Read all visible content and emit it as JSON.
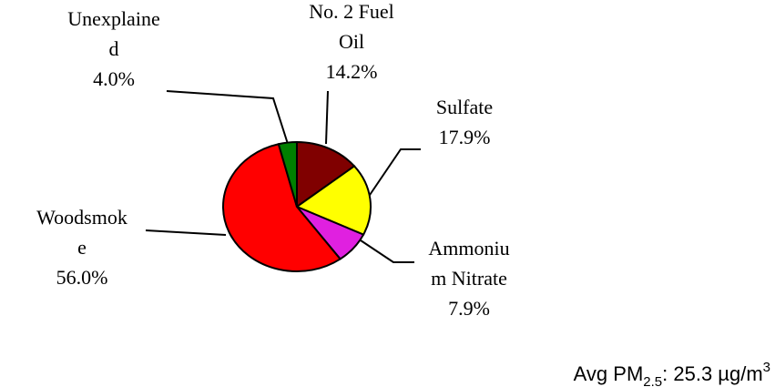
{
  "chart_data": {
    "type": "pie",
    "categories": [
      [
        "No. 2 Fuel",
        "Oil"
      ],
      [
        "Sulfate"
      ],
      [
        "Ammoniu",
        "m Nitrate"
      ],
      [
        "Woodsmok",
        "e"
      ],
      [
        "Unexplaine",
        "d"
      ]
    ],
    "values": [
      14.2,
      17.9,
      7.9,
      56.0,
      4.0
    ],
    "value_labels": [
      "14.2%",
      "17.9%",
      "7.9%",
      "56.0%",
      "4.0%"
    ],
    "colors": [
      "#800000",
      "#ffff00",
      "#e020e0",
      "#ff0000",
      "#008000"
    ],
    "annotation": {
      "text": "Avg PM",
      "sub": "2.5",
      "text2": ": 25.3 µg/m",
      "sup": "3"
    }
  }
}
